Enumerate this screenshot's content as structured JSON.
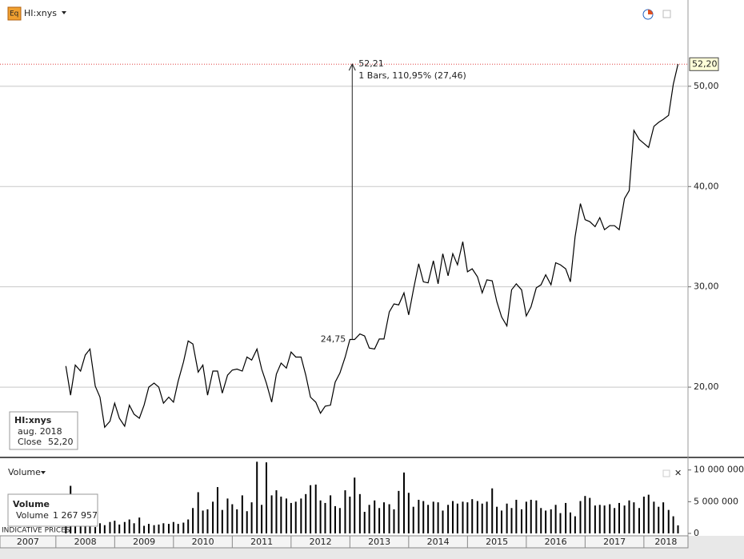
{
  "chart_data": [
    {
      "type": "line",
      "title": "HI:xnys",
      "x": [
        2008.17,
        2008.25,
        2008.33,
        2008.42,
        2008.5,
        2008.58,
        2008.67,
        2008.75,
        2008.83,
        2008.92,
        2009,
        2009.08,
        2009.17,
        2009.25,
        2009.33,
        2009.42,
        2009.5,
        2009.58,
        2009.67,
        2009.75,
        2009.83,
        2009.92,
        2010,
        2010.08,
        2010.17,
        2010.25,
        2010.33,
        2010.42,
        2010.5,
        2010.58,
        2010.67,
        2010.75,
        2010.83,
        2010.92,
        2011,
        2011.08,
        2011.17,
        2011.25,
        2011.33,
        2011.42,
        2011.5,
        2011.58,
        2011.67,
        2011.75,
        2011.83,
        2011.92,
        2012,
        2012.08,
        2012.17,
        2012.25,
        2012.33,
        2012.42,
        2012.5,
        2012.58,
        2012.67,
        2012.75,
        2012.83,
        2012.92,
        2013,
        2013.08,
        2013.17,
        2013.25,
        2013.33,
        2013.42,
        2013.5,
        2013.58,
        2013.67,
        2013.75,
        2013.83,
        2013.92,
        2014,
        2014.08,
        2014.17,
        2014.25,
        2014.33,
        2014.42,
        2014.5,
        2014.58,
        2014.67,
        2014.75,
        2014.83,
        2014.92,
        2015,
        2015.08,
        2015.17,
        2015.25,
        2015.33,
        2015.42,
        2015.5,
        2015.58,
        2015.67,
        2015.75,
        2015.83,
        2015.92,
        2016,
        2016.08,
        2016.17,
        2016.25,
        2016.33,
        2016.42,
        2016.5,
        2016.58,
        2016.67,
        2016.75,
        2016.83,
        2016.92,
        2017,
        2017.08,
        2017.17,
        2017.25,
        2017.33,
        2017.42,
        2017.5,
        2017.58,
        2017.67,
        2017.75,
        2017.83,
        2017.92,
        2018,
        2018.08,
        2018.17,
        2018.25,
        2018.33,
        2018.42,
        2018.5,
        2018.58
      ],
      "series": [
        {
          "color": "#000000",
          "values": [
            22.1,
            19.2,
            22.2,
            21.6,
            23.2,
            23.8,
            20.1,
            19.0,
            16.0,
            16.6,
            18.4,
            16.9,
            16.1,
            18.2,
            17.3,
            16.9,
            18.2,
            20.0,
            20.4,
            20.0,
            18.4,
            19.0,
            18.5,
            20.6,
            22.5,
            24.6,
            24.3,
            21.5,
            22.2,
            19.2,
            21.6,
            21.6,
            19.4,
            21.2,
            21.7,
            21.8,
            21.6,
            23.0,
            22.7,
            23.8,
            21.8,
            20.4,
            18.5,
            21.3,
            22.4,
            21.9,
            23.5,
            23.0,
            23.0,
            21.2,
            19.0,
            18.5,
            17.4,
            18.1,
            18.2,
            20.5,
            21.4,
            23.0,
            24.75,
            24.75,
            25.3,
            25.1,
            23.9,
            23.8,
            24.8,
            24.8,
            27.5,
            28.3,
            28.2,
            29.4,
            27.2,
            29.7,
            32.3,
            30.5,
            30.4,
            32.6,
            30.3,
            33.3,
            31.1,
            33.3,
            32.2,
            34.5,
            31.5,
            31.8,
            31.0,
            29.4,
            30.7,
            30.6,
            28.5,
            27.0,
            26.1,
            29.7,
            30.3,
            29.7,
            27.1,
            28.0,
            29.9,
            30.2,
            31.2,
            30.2,
            32.4,
            32.2,
            31.8,
            30.5,
            35.0,
            38.3,
            36.7,
            36.5,
            36.0,
            36.9,
            35.7,
            36.1,
            36.1,
            35.7,
            38.8,
            39.6,
            45.6,
            44.7,
            44.3,
            43.9,
            46.0,
            46.4,
            46.7,
            47.1,
            50.2,
            52.2
          ]
        }
      ],
      "xlim": [
        2007.05,
        2018.75
      ],
      "ylim": [
        13.15,
        58.6
      ],
      "yticks": [
        {
          "value": 20,
          "label": "20,00"
        },
        {
          "value": 30,
          "label": "30,00"
        },
        {
          "value": 40,
          "label": "40,00"
        },
        {
          "value": 50,
          "label": "50,00"
        }
      ],
      "grid": true,
      "last_close": {
        "value": 52.2,
        "label": "52,20"
      },
      "last_line_color": "#e04040",
      "annotation": {
        "x": 2013.04,
        "from": {
          "value": 24.75,
          "label": "24,75"
        },
        "to": {
          "value": 52.21,
          "label": "52,21"
        },
        "text": "1 Bars, 110,95% (27,46)"
      },
      "legend": {
        "title": "HI:xnys",
        "date": "aug. 2018",
        "label": "Close",
        "value": {
          "value": 52.2,
          "label": "52,20"
        }
      }
    },
    {
      "type": "bar",
      "title": "Volume",
      "x": [
        2008.17,
        2008.25,
        2008.33,
        2008.42,
        2008.5,
        2008.58,
        2008.67,
        2008.75,
        2008.83,
        2008.92,
        2009,
        2009.08,
        2009.17,
        2009.25,
        2009.33,
        2009.42,
        2009.5,
        2009.58,
        2009.67,
        2009.75,
        2009.83,
        2009.92,
        2010,
        2010.08,
        2010.17,
        2010.25,
        2010.33,
        2010.42,
        2010.5,
        2010.58,
        2010.67,
        2010.75,
        2010.83,
        2010.92,
        2011,
        2011.08,
        2011.17,
        2011.25,
        2011.33,
        2011.42,
        2011.5,
        2011.58,
        2011.67,
        2011.75,
        2011.83,
        2011.92,
        2012,
        2012.08,
        2012.17,
        2012.25,
        2012.33,
        2012.42,
        2012.5,
        2012.58,
        2012.67,
        2012.75,
        2012.83,
        2012.92,
        2013,
        2013.08,
        2013.17,
        2013.25,
        2013.33,
        2013.42,
        2013.5,
        2013.58,
        2013.67,
        2013.75,
        2013.83,
        2013.92,
        2014,
        2014.08,
        2014.17,
        2014.25,
        2014.33,
        2014.42,
        2014.5,
        2014.58,
        2014.67,
        2014.75,
        2014.83,
        2014.92,
        2015,
        2015.08,
        2015.17,
        2015.25,
        2015.33,
        2015.42,
        2015.5,
        2015.58,
        2015.67,
        2015.75,
        2015.83,
        2015.92,
        2016,
        2016.08,
        2016.17,
        2016.25,
        2016.33,
        2016.42,
        2016.5,
        2016.58,
        2016.67,
        2016.75,
        2016.83,
        2016.92,
        2017,
        2017.08,
        2017.17,
        2017.25,
        2017.33,
        2017.42,
        2017.5,
        2017.58,
        2017.67,
        2017.75,
        2017.83,
        2017.92,
        2018,
        2018.08,
        2018.17,
        2018.25,
        2018.33,
        2018.42,
        2018.5,
        2018.58
      ],
      "values": [
        1500000,
        7500000,
        2000000,
        1800000,
        1200000,
        1500000,
        1000000,
        1600000,
        1300000,
        1800000,
        2000000,
        1400000,
        1800000,
        2200000,
        1600000,
        2500000,
        1200000,
        1500000,
        1300000,
        1400000,
        1600000,
        1500000,
        1800000,
        1500000,
        1700000,
        2200000,
        4000000,
        6500000,
        3600000,
        3800000,
        5000000,
        7300000,
        3700000,
        5500000,
        4600000,
        3800000,
        6000000,
        3500000,
        4900000,
        11300000,
        4500000,
        11200000,
        6000000,
        6800000,
        5800000,
        5500000,
        4800000,
        5000000,
        5500000,
        6200000,
        7600000,
        7700000,
        5200000,
        4800000,
        6000000,
        4300000,
        4000000,
        6800000,
        5800000,
        8800000,
        6200000,
        3400000,
        4500000,
        5200000,
        4000000,
        4900000,
        4600000,
        3800000,
        6700000,
        9600000,
        6400000,
        4200000,
        5300000,
        5100000,
        4500000,
        5000000,
        4900000,
        3600000,
        4500000,
        5100000,
        4700000,
        5000000,
        4900000,
        5400000,
        5100000,
        4700000,
        5000000,
        7100000,
        4200000,
        3600000,
        4700000,
        4000000,
        5300000,
        3800000,
        5000000,
        5300000,
        5200000,
        4000000,
        3600000,
        3800000,
        4500000,
        3200000,
        4800000,
        3300000,
        2700000,
        5100000,
        5900000,
        5600000,
        4400000,
        4500000,
        4400000,
        4600000,
        4000000,
        4800000,
        4400000,
        5200000,
        4900000,
        4000000,
        5800000,
        6100000,
        5000000,
        4200000,
        4900000,
        3700000,
        2700000,
        1267957
      ],
      "color": "#000000",
      "xlim": [
        2007.05,
        2018.75
      ],
      "xticks": [
        2007,
        2008,
        2009,
        2010,
        2011,
        2012,
        2013,
        2014,
        2015,
        2016,
        2017,
        2018
      ],
      "ylim": [
        0,
        11600000
      ],
      "yticks": [
        0,
        {
          "value": 5000000,
          "label": "5 000 000"
        },
        {
          "value": 10000000,
          "label": "10 000 000"
        }
      ],
      "legend": {
        "title": "Volume",
        "label": "Volume",
        "value": {
          "value": 1267957,
          "label": "1 267 957"
        }
      },
      "footer": "INDICATIVE PRICES"
    }
  ]
}
